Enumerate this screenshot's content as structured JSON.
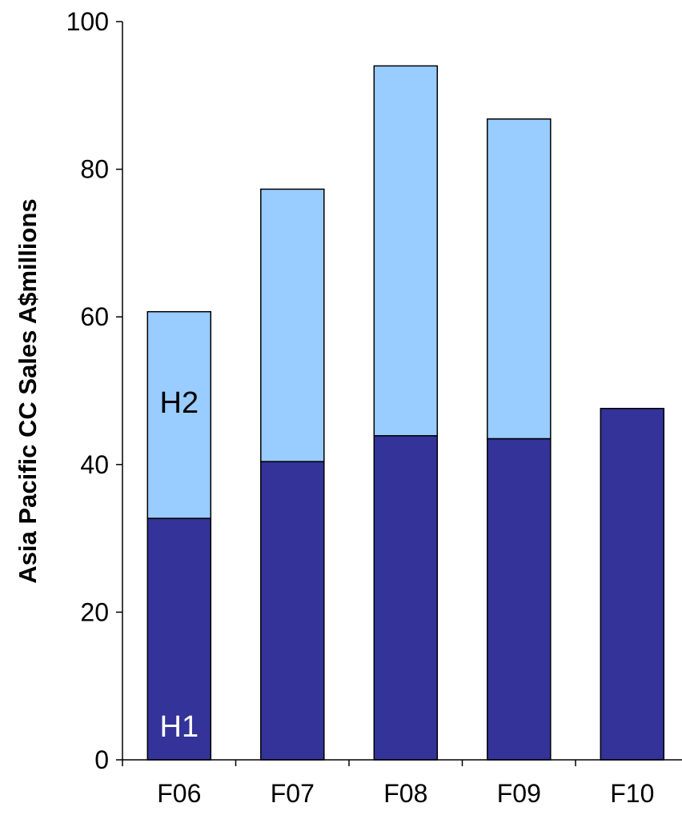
{
  "chart_data": {
    "type": "bar",
    "stacked": true,
    "categories": [
      "F06",
      "F07",
      "F08",
      "F09",
      "F10"
    ],
    "series": [
      {
        "name": "H1",
        "values": [
          32.7,
          40.4,
          43.9,
          43.5,
          47.6
        ],
        "color": "#333399"
      },
      {
        "name": "H2",
        "values": [
          28.0,
          36.9,
          50.1,
          43.3,
          null
        ],
        "color": "#99ccff"
      }
    ],
    "ylabel": "Asia Pacific CC Sales A$millions",
    "xlabel": "",
    "title": "",
    "ylim": [
      0,
      100
    ],
    "yticks": [
      0,
      20,
      40,
      60,
      80,
      100
    ],
    "grid": false,
    "legend": "none"
  }
}
